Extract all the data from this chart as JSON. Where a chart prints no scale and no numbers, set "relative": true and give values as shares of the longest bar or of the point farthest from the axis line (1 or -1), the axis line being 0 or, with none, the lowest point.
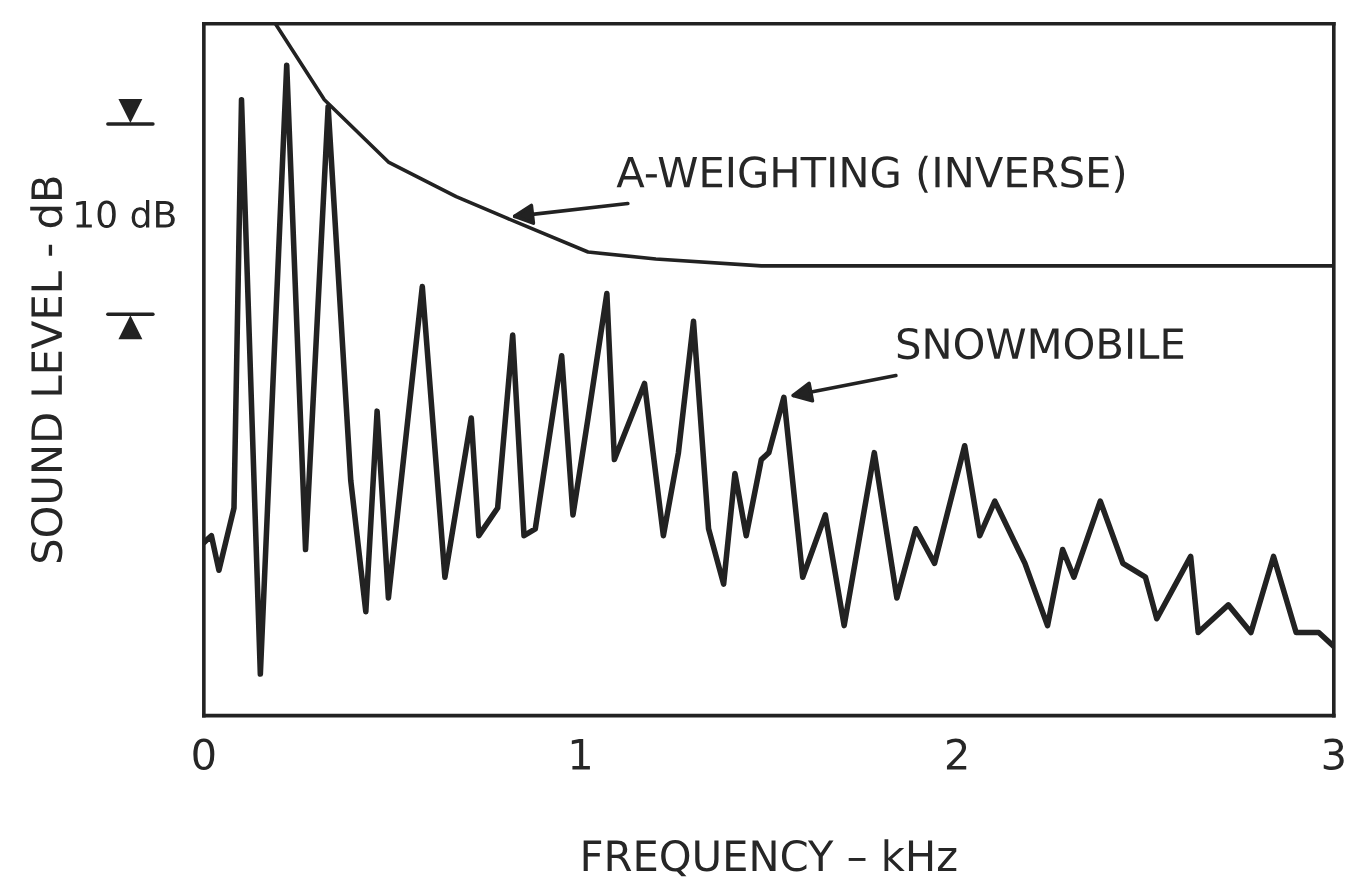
{
  "chart_data": {
    "type": "line",
    "relative": true,
    "xlabel": "FREQUENCY – kHz",
    "ylabel": "SOUND LEVEL - dB",
    "xlim": [
      0,
      3
    ],
    "xticks": [
      0,
      1,
      2,
      3
    ],
    "grid": false,
    "legend": false,
    "marker": "none",
    "line_style": "solid",
    "series": [
      {
        "color": "#222222",
        "x": [
          0.19,
          0.32,
          0.49,
          0.67,
          0.8,
          1.02,
          1.2,
          1.48,
          3.0
        ],
        "values": [
          1.0,
          0.89,
          0.8,
          0.75,
          0.72,
          0.67,
          0.66,
          0.65,
          0.65
        ]
      },
      {
        "color": "#222222",
        "x": [
          0.0,
          0.02,
          0.04,
          0.08,
          0.1,
          0.15,
          0.22,
          0.27,
          0.33,
          0.39,
          0.43,
          0.46,
          0.49,
          0.58,
          0.64,
          0.71,
          0.73,
          0.78,
          0.82,
          0.85,
          0.88,
          0.95,
          0.98,
          1.02,
          1.07,
          1.09,
          1.17,
          1.22,
          1.26,
          1.3,
          1.34,
          1.38,
          1.41,
          1.44,
          1.48,
          1.5,
          1.54,
          1.59,
          1.65,
          1.7,
          1.78,
          1.84,
          1.89,
          1.94,
          2.02,
          2.06,
          2.1,
          2.18,
          2.24,
          2.28,
          2.31,
          2.38,
          2.44,
          2.5,
          2.53,
          2.62,
          2.64,
          2.72,
          2.78,
          2.84,
          2.9,
          2.96,
          3.0
        ],
        "values": [
          0.25,
          0.26,
          0.21,
          0.3,
          0.89,
          0.06,
          0.94,
          0.24,
          0.88,
          0.34,
          0.15,
          0.44,
          0.17,
          0.62,
          0.2,
          0.43,
          0.26,
          0.3,
          0.55,
          0.26,
          0.27,
          0.52,
          0.29,
          0.43,
          0.61,
          0.37,
          0.48,
          0.26,
          0.38,
          0.57,
          0.27,
          0.19,
          0.35,
          0.26,
          0.37,
          0.38,
          0.46,
          0.2,
          0.29,
          0.13,
          0.38,
          0.17,
          0.27,
          0.22,
          0.39,
          0.26,
          0.31,
          0.22,
          0.13,
          0.24,
          0.2,
          0.31,
          0.22,
          0.2,
          0.14,
          0.23,
          0.12,
          0.16,
          0.12,
          0.23,
          0.12,
          0.12,
          0.1
        ]
      }
    ],
    "annotations": [
      {
        "text": "A-WEIGHTING (INVERSE)",
        "x": 0.8,
        "y": 0.72
      },
      {
        "text": "SNOWMOBILE",
        "x": 1.54,
        "y": 0.46
      },
      "10 dB"
    ]
  }
}
